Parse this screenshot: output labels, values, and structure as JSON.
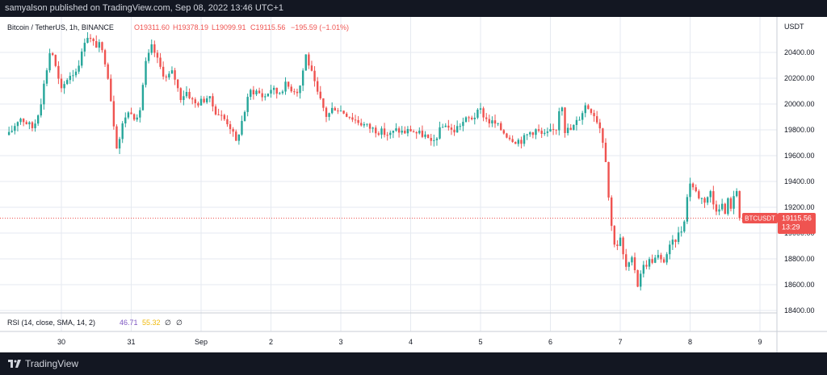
{
  "header": {
    "published_line": "samyalson published on TradingView.com, Sep 08, 2022 13:46 UTC+1"
  },
  "legend": {
    "symbol": "Bitcoin / TetherUS, 1h, BINANCE",
    "open": "O19311.60",
    "high": "H19378.19",
    "low": "L19099.91",
    "close": "C19115.56",
    "change": "−195.59 (−1.01%)"
  },
  "price_label": {
    "ticker": "BTCUSDT",
    "price": "19115.56",
    "countdown": "13:29"
  },
  "rsi_legend": {
    "label": "RSI (14, close, SMA, 14, 2)",
    "value": "46.71",
    "sma": "55.32",
    "icon_a": "∅",
    "icon_b": "∅"
  },
  "footer": {
    "brand": "TradingView"
  },
  "colors": {
    "up": "#26a69a",
    "down": "#ef5350",
    "grid": "#e6eaf0",
    "text": "#131722",
    "rsi_value": "#7e57c2",
    "rsi_sma": "#f0b90b",
    "price_tag": "#ef5350"
  },
  "chart_data": {
    "type": "candlestick",
    "symbol": "BTCUSDT",
    "interval": "1h",
    "y_axis_unit": "USDT",
    "ylim": [
      18400,
      20600
    ],
    "y_ticks": [
      "18400.00",
      "18600.00",
      "18800.00",
      "19000.00",
      "19200.00",
      "19400.00",
      "19600.00",
      "19800.00",
      "20000.00",
      "20200.00",
      "20400.00"
    ],
    "x_ticks": [
      {
        "label": "30",
        "day": 0
      },
      {
        "label": "31",
        "day": 1
      },
      {
        "label": "Sep",
        "day": 2
      },
      {
        "label": "2",
        "day": 3
      },
      {
        "label": "3",
        "day": 4
      },
      {
        "label": "4",
        "day": 5
      },
      {
        "label": "5",
        "day": 6
      },
      {
        "label": "6",
        "day": 7
      },
      {
        "label": "7",
        "day": 8
      },
      {
        "label": "8",
        "day": 9
      },
      {
        "label": "9",
        "day": 10
      }
    ],
    "last_price": 19115.56,
    "close_path": [
      [
        -0.75,
        19760
      ],
      [
        -0.6,
        19900
      ],
      [
        -0.4,
        19810
      ],
      [
        -0.3,
        20000
      ],
      [
        -0.2,
        20300
      ],
      [
        -0.15,
        20450
      ],
      [
        -0.05,
        20200
      ],
      [
        0,
        20100
      ],
      [
        0.1,
        20220
      ],
      [
        0.2,
        20250
      ],
      [
        0.3,
        20400
      ],
      [
        0.35,
        20550
      ],
      [
        0.45,
        20470
      ],
      [
        0.55,
        20450
      ],
      [
        0.65,
        20300
      ],
      [
        0.75,
        19850
      ],
      [
        0.8,
        19650
      ],
      [
        0.9,
        19900
      ],
      [
        1.0,
        19950
      ],
      [
        1.1,
        19850
      ],
      [
        1.2,
        20300
      ],
      [
        1.3,
        20450
      ],
      [
        1.4,
        20300
      ],
      [
        1.5,
        20200
      ],
      [
        1.6,
        20250
      ],
      [
        1.7,
        20050
      ],
      [
        1.8,
        20100
      ],
      [
        1.9,
        20000
      ],
      [
        2.0,
        20020
      ],
      [
        2.1,
        20060
      ],
      [
        2.2,
        19950
      ],
      [
        2.3,
        19900
      ],
      [
        2.4,
        19850
      ],
      [
        2.5,
        19700
      ],
      [
        2.6,
        19900
      ],
      [
        2.7,
        20100
      ],
      [
        2.8,
        20100
      ],
      [
        2.9,
        20050
      ],
      [
        3.0,
        20120
      ],
      [
        3.1,
        20080
      ],
      [
        3.2,
        20150
      ],
      [
        3.3,
        20120
      ],
      [
        3.4,
        20100
      ],
      [
        3.5,
        20380
      ],
      [
        3.55,
        20300
      ],
      [
        3.65,
        20100
      ],
      [
        3.8,
        19900
      ],
      [
        3.9,
        19980
      ],
      [
        4.0,
        19950
      ],
      [
        4.1,
        19920
      ],
      [
        4.2,
        19880
      ],
      [
        4.3,
        19850
      ],
      [
        4.4,
        19820
      ],
      [
        4.5,
        19800
      ],
      [
        4.6,
        19780
      ],
      [
        4.7,
        19760
      ],
      [
        4.8,
        19800
      ],
      [
        4.9,
        19780
      ],
      [
        5.0,
        19800
      ],
      [
        5.1,
        19770
      ],
      [
        5.2,
        19760
      ],
      [
        5.3,
        19680
      ],
      [
        5.4,
        19780
      ],
      [
        5.5,
        19850
      ],
      [
        5.6,
        19780
      ],
      [
        5.7,
        19840
      ],
      [
        5.8,
        19880
      ],
      [
        5.9,
        19900
      ],
      [
        6.0,
        19950
      ],
      [
        6.1,
        19870
      ],
      [
        6.2,
        19850
      ],
      [
        6.3,
        19800
      ],
      [
        6.4,
        19750
      ],
      [
        6.5,
        19720
      ],
      [
        6.6,
        19720
      ],
      [
        6.7,
        19780
      ],
      [
        6.8,
        19800
      ],
      [
        6.9,
        19750
      ],
      [
        7.0,
        19780
      ],
      [
        7.1,
        19820
      ],
      [
        7.15,
        20100
      ],
      [
        7.2,
        19800
      ],
      [
        7.3,
        19800
      ],
      [
        7.4,
        19880
      ],
      [
        7.5,
        19990
      ],
      [
        7.6,
        19950
      ],
      [
        7.7,
        19840
      ],
      [
        7.75,
        19720
      ],
      [
        7.8,
        19550
      ],
      [
        7.85,
        19150
      ],
      [
        7.9,
        18950
      ],
      [
        7.95,
        18900
      ],
      [
        8.0,
        18950
      ],
      [
        8.05,
        18800
      ],
      [
        8.1,
        18700
      ],
      [
        8.15,
        18800
      ],
      [
        8.2,
        18750
      ],
      [
        8.25,
        18600
      ],
      [
        8.3,
        18720
      ],
      [
        8.4,
        18780
      ],
      [
        8.5,
        18800
      ],
      [
        8.55,
        18820
      ],
      [
        8.6,
        18760
      ],
      [
        8.7,
        18880
      ],
      [
        8.8,
        18960
      ],
      [
        8.9,
        19050
      ],
      [
        8.95,
        19250
      ],
      [
        9.0,
        19400
      ],
      [
        9.05,
        19350
      ],
      [
        9.1,
        19300
      ],
      [
        9.2,
        19250
      ],
      [
        9.3,
        19320
      ],
      [
        9.35,
        19180
      ],
      [
        9.45,
        19230
      ],
      [
        9.5,
        19150
      ],
      [
        9.55,
        19270
      ],
      [
        9.6,
        19180
      ],
      [
        9.65,
        19350
      ],
      [
        9.7,
        19300
      ],
      [
        9.72,
        19115.56
      ]
    ]
  }
}
